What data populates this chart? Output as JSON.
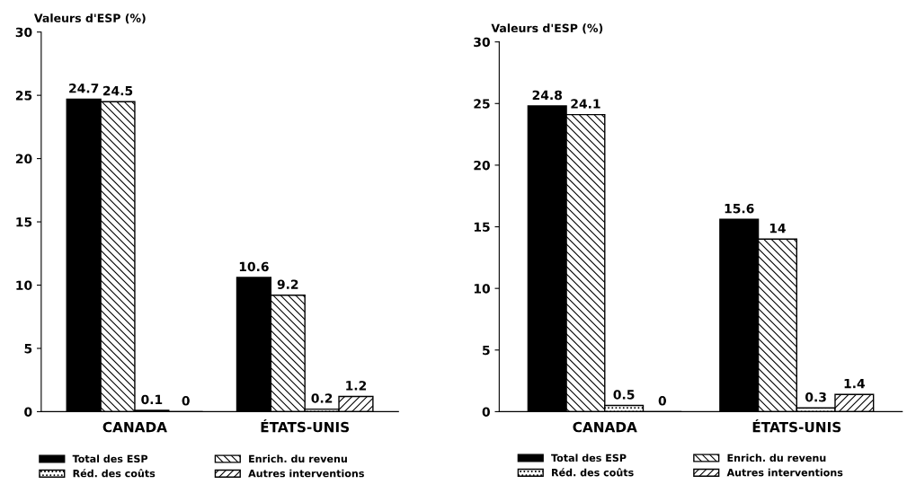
{
  "chart_data": [
    {
      "type": "bar",
      "ylabel": "Valeurs d'ESP (%)",
      "categories": [
        "CANADA",
        "ÉTATS-UNIS"
      ],
      "ylim": [
        0,
        30
      ],
      "yticks": [
        0,
        5,
        10,
        15,
        20,
        25,
        30
      ],
      "data_labels": true,
      "legend": "bottom",
      "series": [
        {
          "name": "Total des ESP",
          "color": "#000000",
          "values": [
            24.7,
            10.6
          ]
        },
        {
          "name": "Enrich. du revenu",
          "color": "#000000",
          "values": [
            24.5,
            9.2
          ]
        },
        {
          "name": "Réd. des coûts",
          "color": "#000000",
          "values": [
            0.1,
            0.2
          ]
        },
        {
          "name": "Autres interventions",
          "color": "#000000",
          "values": [
            0,
            1.2
          ]
        }
      ]
    },
    {
      "type": "bar",
      "ylabel": "Valeurs d'ESP (%)",
      "categories": [
        "CANADA",
        "ÉTATS-UNIS"
      ],
      "ylim": [
        0,
        30
      ],
      "yticks": [
        0,
        5,
        10,
        15,
        20,
        25,
        30
      ],
      "data_labels": true,
      "legend": "bottom",
      "series": [
        {
          "name": "Total des ESP",
          "color": "#000000",
          "values": [
            24.8,
            15.6
          ]
        },
        {
          "name": "Enrich. du revenu",
          "color": "#000000",
          "values": [
            24.1,
            14
          ]
        },
        {
          "name": "Réd. des coûts",
          "color": "#000000",
          "values": [
            0.5,
            0.3
          ]
        },
        {
          "name": "Autres interventions",
          "color": "#000000",
          "values": [
            0,
            1.4
          ]
        }
      ]
    }
  ]
}
